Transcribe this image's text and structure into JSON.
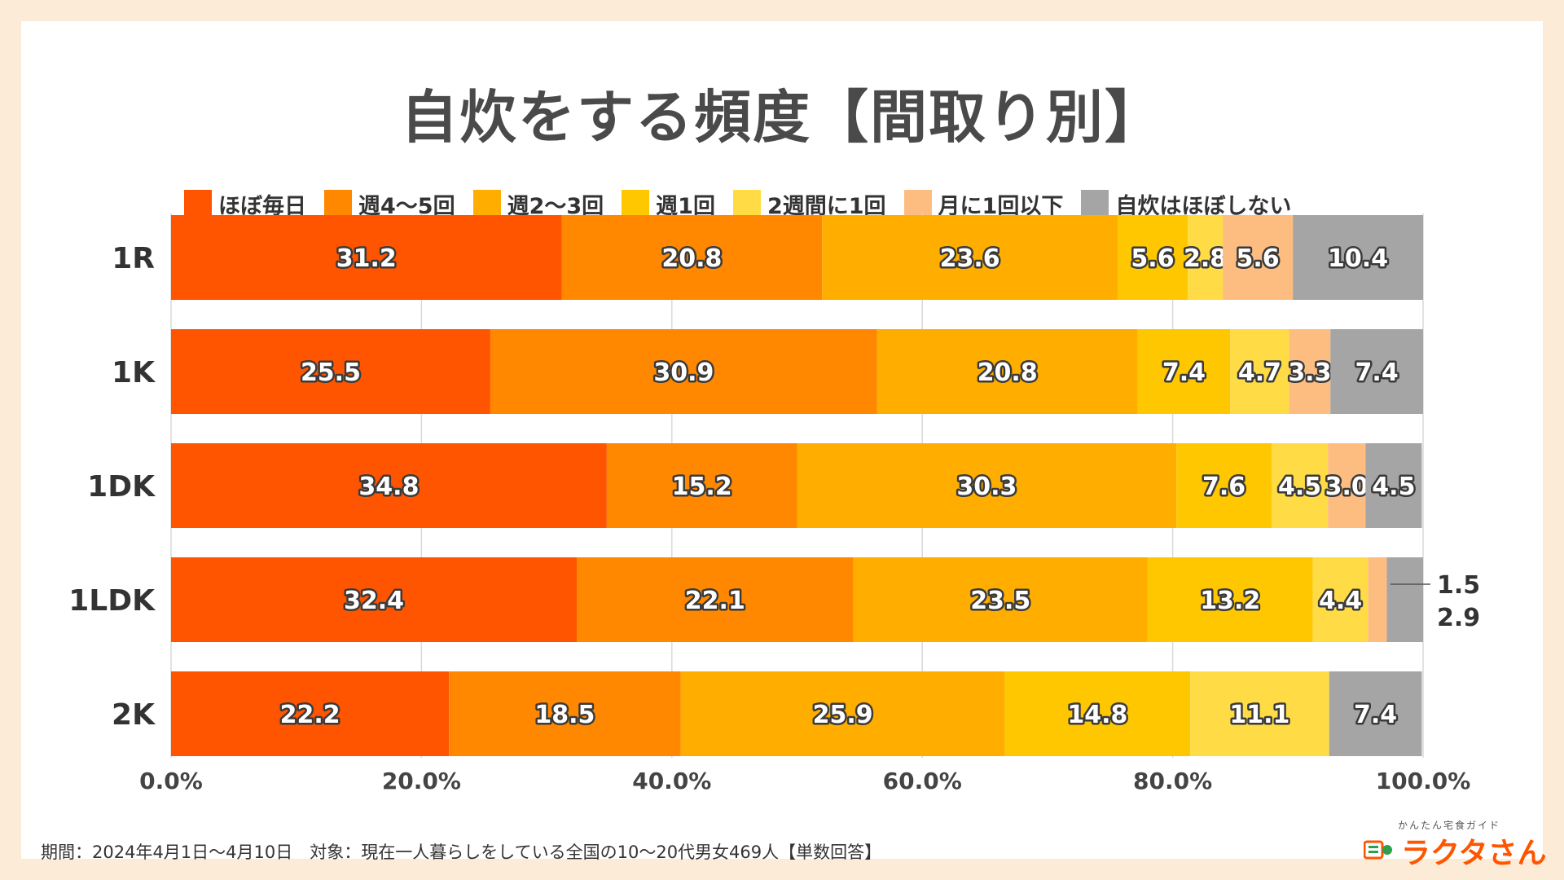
{
  "title": "自炊をする頻度【間取り別】",
  "footnote": "期間：2024年4月1日〜4月10日　対象：現在一人暮らしをしている全国の10〜20代男女469人【単数回答】",
  "logo": {
    "sub": "かんたん宅食ガイド",
    "main": "ラクタさん",
    "icon": "logo-icon"
  },
  "chart_data": {
    "type": "bar",
    "orientation": "horizontal",
    "stacked": true,
    "title": "自炊をする頻度【間取り別】",
    "categories": [
      "1R",
      "1K",
      "1DK",
      "1LDK",
      "2K"
    ],
    "xlim": [
      0,
      100
    ],
    "x_ticks": [
      "0.0%",
      "20.0%",
      "40.0%",
      "60.0%",
      "80.0%",
      "100.0%"
    ],
    "legend_position": "top",
    "grid": true,
    "series": [
      {
        "name": "ほぼ毎日",
        "color": "#ff5500",
        "values": [
          31.2,
          25.5,
          34.8,
          32.4,
          22.2
        ],
        "labels": [
          "31.2",
          "25.5",
          "34.8",
          "32.4",
          "22.2"
        ]
      },
      {
        "name": "週4〜5回",
        "color": "#ff8800",
        "values": [
          20.8,
          30.9,
          15.2,
          22.1,
          18.5
        ],
        "labels": [
          "20.8",
          "30.9",
          "15.2",
          "22.1",
          "18.5"
        ]
      },
      {
        "name": "週2〜3回",
        "color": "#ffae00",
        "values": [
          23.6,
          20.8,
          30.3,
          23.5,
          25.9
        ],
        "labels": [
          "23.6",
          "20.8",
          "30.3",
          "23.5",
          "25.9"
        ]
      },
      {
        "name": "週1回",
        "color": "#ffc700",
        "values": [
          5.6,
          7.4,
          7.6,
          13.2,
          14.8
        ],
        "labels": [
          "5.6",
          "7.4",
          "7.6",
          "13.2",
          "14.8"
        ]
      },
      {
        "name": "2週間に1回",
        "color": "#ffdc45",
        "values": [
          2.8,
          4.7,
          4.5,
          4.4,
          11.1
        ],
        "labels": [
          "2.8",
          "4.7",
          "4.5",
          "4.4",
          "11.1"
        ]
      },
      {
        "name": "月に1回以下",
        "color": "#fdbd80",
        "values": [
          5.6,
          3.3,
          3.0,
          1.5,
          0
        ],
        "labels": [
          "5.6",
          "3.3",
          "3.0",
          "1.5",
          ""
        ]
      },
      {
        "name": "自炊はほぼしない",
        "color": "#a5a5a5",
        "values": [
          10.4,
          7.4,
          4.5,
          2.9,
          7.4
        ],
        "labels": [
          "10.4",
          "7.4",
          "4.5",
          "2.9",
          "7.4"
        ]
      }
    ],
    "callouts": [
      {
        "category": "1LDK",
        "series": "月に1回以下",
        "label": "1.5"
      },
      {
        "category": "1LDK",
        "series": "自炊はほぼしない",
        "label": "2.9"
      }
    ]
  }
}
